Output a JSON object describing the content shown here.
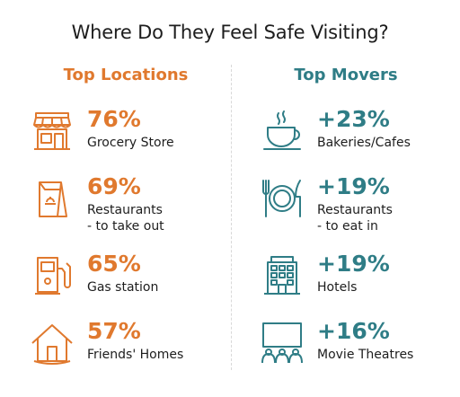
{
  "title": "Where Do They Feel Safe Visiting?",
  "colors": {
    "orange": "#e0792e",
    "teal": "#2f7d86",
    "text": "#1d1d1d"
  },
  "chart_data": [
    {
      "type": "table",
      "title": "Top Locations",
      "rows": [
        {
          "value": "76%",
          "label": [
            "Grocery Store"
          ],
          "icon": "storefront-icon"
        },
        {
          "value": "69%",
          "label": [
            "Restaurants",
            "- to take out"
          ],
          "icon": "takeout-bag-icon"
        },
        {
          "value": "65%",
          "label": [
            "Gas station"
          ],
          "icon": "gas-pump-icon"
        },
        {
          "value": "57%",
          "label": [
            "Friends' Homes"
          ],
          "icon": "house-icon"
        }
      ]
    },
    {
      "type": "table",
      "title": "Top Movers",
      "rows": [
        {
          "value": "+23%",
          "label": [
            "Bakeries/Cafes"
          ],
          "icon": "coffee-cup-icon"
        },
        {
          "value": "+19%",
          "label": [
            "Restaurants",
            "- to eat in"
          ],
          "icon": "plate-cutlery-icon"
        },
        {
          "value": "+19%",
          "label": [
            "Hotels"
          ],
          "icon": "hotel-building-icon"
        },
        {
          "value": "+16%",
          "label": [
            "Movie Theatres"
          ],
          "icon": "movie-theatre-icon"
        }
      ]
    }
  ]
}
